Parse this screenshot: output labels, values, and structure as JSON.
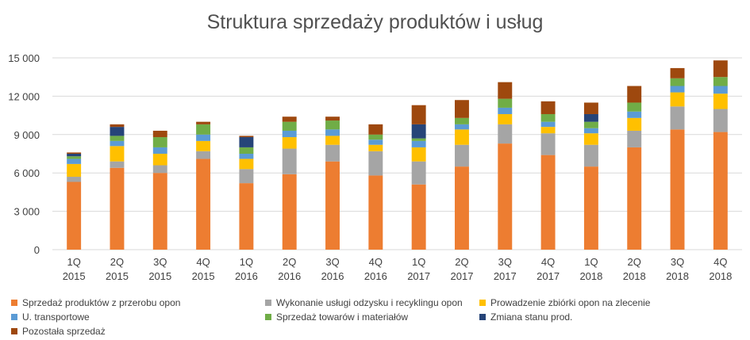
{
  "chart_data": {
    "type": "bar",
    "stacked": true,
    "title": "Struktura sprzedaży produktów i usług",
    "categories": [
      [
        "1Q",
        "2015"
      ],
      [
        "2Q",
        "2015"
      ],
      [
        "3Q",
        "2015"
      ],
      [
        "4Q",
        "2015"
      ],
      [
        "1Q",
        "2016"
      ],
      [
        "2Q",
        "2016"
      ],
      [
        "3Q",
        "2016"
      ],
      [
        "4Q",
        "2016"
      ],
      [
        "1Q",
        "2017"
      ],
      [
        "2Q",
        "2017"
      ],
      [
        "3Q",
        "2017"
      ],
      [
        "4Q",
        "2017"
      ],
      [
        "1Q",
        "2018"
      ],
      [
        "2Q",
        "2018"
      ],
      [
        "3Q",
        "2018"
      ],
      [
        "4Q",
        "2018"
      ]
    ],
    "ylim": [
      0,
      15000
    ],
    "yticks": [
      0,
      3000,
      6000,
      9000,
      12000,
      15000
    ],
    "ytick_labels": [
      "0",
      "3 000",
      "6 000",
      "9 000",
      "12 000",
      "15 000"
    ],
    "grid": true,
    "legend_position": "bottom",
    "series": [
      {
        "name": "Sprzedaż produktów z przerobu opon",
        "color": "#ED7D31",
        "values": [
          5300,
          6400,
          6000,
          7100,
          5200,
          5900,
          6900,
          5800,
          5100,
          6500,
          8300,
          7400,
          6500,
          8000,
          9400,
          9200
        ]
      },
      {
        "name": "Wykonanie usługi odzysku i recyklingu opon",
        "color": "#A5A5A5",
        "values": [
          400,
          500,
          600,
          600,
          1100,
          2000,
          1300,
          1900,
          1800,
          1700,
          1500,
          1700,
          1700,
          1300,
          1800,
          1800
        ]
      },
      {
        "name": "Prowadzenie zbiórki opon na zlecenie",
        "color": "#FFC000",
        "values": [
          1000,
          1200,
          900,
          800,
          800,
          900,
          700,
          500,
          1100,
          1200,
          800,
          500,
          900,
          1000,
          1100,
          1200
        ]
      },
      {
        "name": "U. transportowe",
        "color": "#5B9BD5",
        "values": [
          400,
          400,
          500,
          500,
          400,
          500,
          500,
          400,
          500,
          400,
          500,
          400,
          400,
          500,
          500,
          600
        ]
      },
      {
        "name": "Sprzedaż towarów i materiałów",
        "color": "#70AD47",
        "values": [
          200,
          400,
          800,
          800,
          500,
          700,
          700,
          400,
          200,
          500,
          700,
          600,
          500,
          700,
          600,
          700
        ]
      },
      {
        "name": "Zmiana stanu prod.",
        "color": "#264478",
        "values": [
          200,
          700,
          0,
          0,
          800,
          0,
          0,
          0,
          1100,
          0,
          0,
          0,
          600,
          0,
          0,
          0
        ]
      },
      {
        "name": "Pozostała sprzedaż",
        "color": "#9E480E",
        "values": [
          100,
          200,
          500,
          200,
          100,
          400,
          300,
          800,
          1500,
          1400,
          1300,
          1000,
          900,
          1300,
          800,
          1300
        ]
      }
    ]
  }
}
